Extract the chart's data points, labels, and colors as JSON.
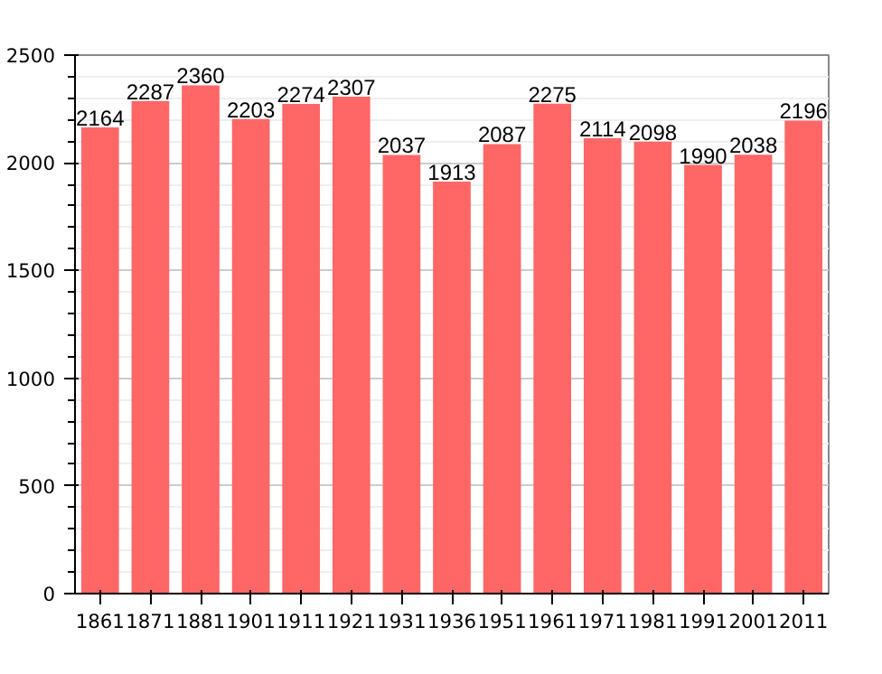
{
  "chart_data": {
    "type": "bar",
    "categories": [
      "1861",
      "1871",
      "1881",
      "1901",
      "1911",
      "1921",
      "1931",
      "1936",
      "1951",
      "1961",
      "1971",
      "1981",
      "1991",
      "2001",
      "2011"
    ],
    "values": [
      2164,
      2287,
      2360,
      2203,
      2274,
      2307,
      2037,
      1913,
      2087,
      2275,
      2114,
      2098,
      1990,
      2038,
      2196
    ],
    "color": "#ff6666",
    "ylim": [
      0,
      2500
    ],
    "yticks": [
      0,
      500,
      1000,
      1500,
      2000,
      2500
    ],
    "grid": "y",
    "data_labels": true
  }
}
